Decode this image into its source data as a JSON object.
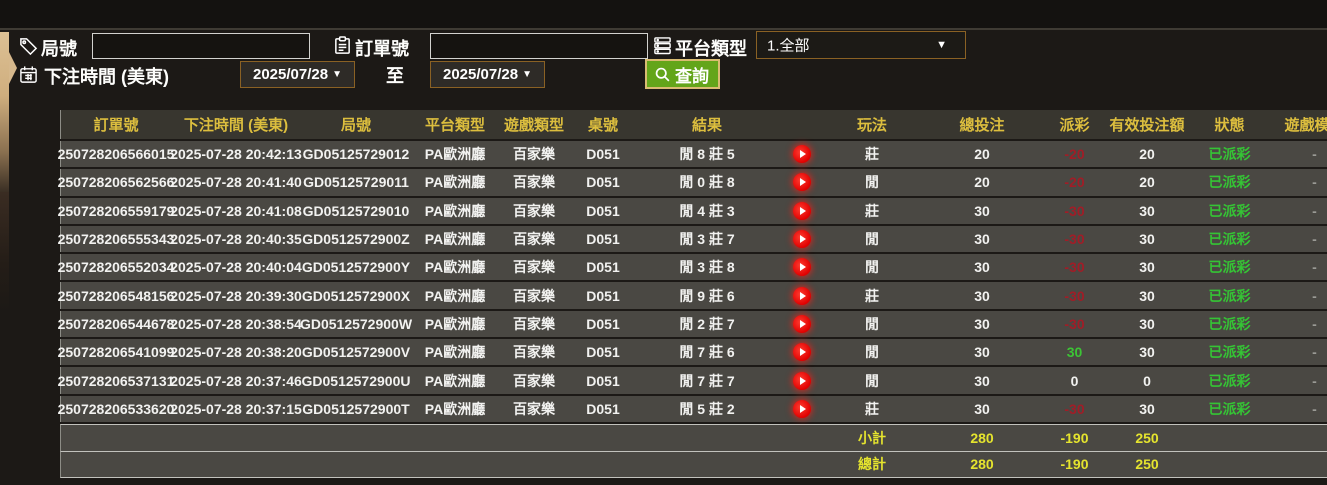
{
  "filters": {
    "game_no_label": "局號",
    "game_no_value": "",
    "order_no_label": "訂單號",
    "order_no_value": "",
    "platform_type_label": "平台類型",
    "platform_type_value": "1.全部",
    "bet_time_label": "下注時間 (美東)",
    "date_from": "2025/07/28",
    "date_to": "2025/07/28",
    "to_label": "至",
    "search_label": "查詢"
  },
  "colors": {
    "accent_green": "#63a51a",
    "header_yellow": "#dcbe3e",
    "footer_yellow": "#e5e42e",
    "negative_red": "#a01d27",
    "positive_green": "#3cc435",
    "status_green": "#35c435",
    "border_brown": "#8a6124"
  },
  "table": {
    "columns": [
      "訂單號",
      "下注時間 (美東)",
      "局號",
      "平台類型",
      "遊戲類型",
      "桌號",
      "結果",
      "",
      "玩法",
      "總投注",
      "派彩",
      "有效投注額",
      "狀態",
      "遊戲模式"
    ],
    "rows": [
      {
        "order": "250728206566015",
        "time": "2025-07-28 20:42:13",
        "game": "GD05125729012",
        "platform": "PA歐洲廳",
        "game_type": "百家樂",
        "table_no": "D051",
        "result": "閒 8 莊 5",
        "play": "莊",
        "bet": "20",
        "payout": "-20",
        "valid": "20",
        "status": "已派彩",
        "mode": "-"
      },
      {
        "order": "250728206562566",
        "time": "2025-07-28 20:41:40",
        "game": "GD05125729011",
        "platform": "PA歐洲廳",
        "game_type": "百家樂",
        "table_no": "D051",
        "result": "閒 0 莊 8",
        "play": "閒",
        "bet": "20",
        "payout": "-20",
        "valid": "20",
        "status": "已派彩",
        "mode": "-"
      },
      {
        "order": "250728206559179",
        "time": "2025-07-28 20:41:08",
        "game": "GD05125729010",
        "platform": "PA歐洲廳",
        "game_type": "百家樂",
        "table_no": "D051",
        "result": "閒 4 莊 3",
        "play": "莊",
        "bet": "30",
        "payout": "-30",
        "valid": "30",
        "status": "已派彩",
        "mode": "-"
      },
      {
        "order": "250728206555343",
        "time": "2025-07-28 20:40:35",
        "game": "GD0512572900Z",
        "platform": "PA歐洲廳",
        "game_type": "百家樂",
        "table_no": "D051",
        "result": "閒 3 莊 7",
        "play": "閒",
        "bet": "30",
        "payout": "-30",
        "valid": "30",
        "status": "已派彩",
        "mode": "-"
      },
      {
        "order": "250728206552034",
        "time": "2025-07-28 20:40:04",
        "game": "GD0512572900Y",
        "platform": "PA歐洲廳",
        "game_type": "百家樂",
        "table_no": "D051",
        "result": "閒 3 莊 8",
        "play": "閒",
        "bet": "30",
        "payout": "-30",
        "valid": "30",
        "status": "已派彩",
        "mode": "-"
      },
      {
        "order": "250728206548156",
        "time": "2025-07-28 20:39:30",
        "game": "GD0512572900X",
        "platform": "PA歐洲廳",
        "game_type": "百家樂",
        "table_no": "D051",
        "result": "閒 9 莊 6",
        "play": "莊",
        "bet": "30",
        "payout": "-30",
        "valid": "30",
        "status": "已派彩",
        "mode": "-"
      },
      {
        "order": "250728206544678",
        "time": "2025-07-28 20:38:54",
        "game": "GD0512572900W",
        "platform": "PA歐洲廳",
        "game_type": "百家樂",
        "table_no": "D051",
        "result": "閒 2 莊 7",
        "play": "閒",
        "bet": "30",
        "payout": "-30",
        "valid": "30",
        "status": "已派彩",
        "mode": "-"
      },
      {
        "order": "250728206541099",
        "time": "2025-07-28 20:38:20",
        "game": "GD0512572900V",
        "platform": "PA歐洲廳",
        "game_type": "百家樂",
        "table_no": "D051",
        "result": "閒 7 莊 6",
        "play": "閒",
        "bet": "30",
        "payout": "30",
        "valid": "30",
        "status": "已派彩",
        "mode": "-"
      },
      {
        "order": "250728206537131",
        "time": "2025-07-28 20:37:46",
        "game": "GD0512572900U",
        "platform": "PA歐洲廳",
        "game_type": "百家樂",
        "table_no": "D051",
        "result": "閒 7 莊 7",
        "play": "閒",
        "bet": "30",
        "payout": "0",
        "valid": "0",
        "status": "已派彩",
        "mode": "-"
      },
      {
        "order": "250728206533620",
        "time": "2025-07-28 20:37:15",
        "game": "GD0512572900T",
        "platform": "PA歐洲廳",
        "game_type": "百家樂",
        "table_no": "D051",
        "result": "閒 5 莊 2",
        "play": "莊",
        "bet": "30",
        "payout": "-30",
        "valid": "30",
        "status": "已派彩",
        "mode": "-"
      }
    ],
    "subtotal": {
      "label": "小計",
      "bet": "280",
      "payout": "-190",
      "valid": "250"
    },
    "total": {
      "label": "總計",
      "bet": "280",
      "payout": "-190",
      "valid": "250"
    }
  }
}
